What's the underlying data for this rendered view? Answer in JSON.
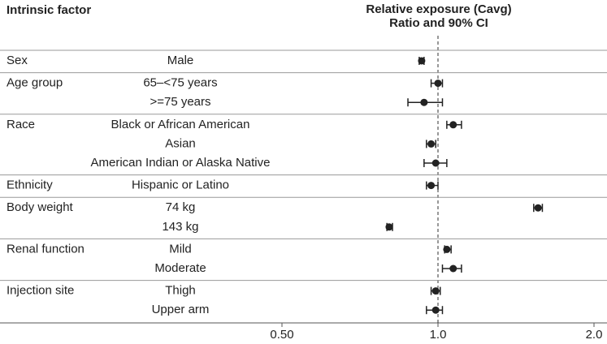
{
  "chart_data": {
    "type": "forest",
    "column_headers": [
      "Intrinsic factor",
      "Relative exposure (Cavg)",
      "Ratio and 90% CI"
    ],
    "groups": [
      {
        "name": "Sex",
        "subgroups": [
          {
            "label": "Male",
            "estimate": 0.93,
            "lower": 0.92,
            "upper": 0.94
          }
        ]
      },
      {
        "name": "Age group",
        "subgroups": [
          {
            "label": "65–<75 years",
            "estimate": 1.0,
            "lower": 0.97,
            "upper": 1.02
          },
          {
            "label": ">=75 years",
            "estimate": 0.94,
            "lower": 0.875,
            "upper": 1.02
          }
        ]
      },
      {
        "name": "Race",
        "subgroups": [
          {
            "label": "Black or African American",
            "estimate": 1.07,
            "lower": 1.04,
            "upper": 1.11
          },
          {
            "label": "Asian",
            "estimate": 0.97,
            "lower": 0.95,
            "upper": 0.99
          },
          {
            "label": "American Indian or Alaska Native",
            "estimate": 0.99,
            "lower": 0.94,
            "upper": 1.04
          }
        ]
      },
      {
        "name": "Ethnicity",
        "subgroups": [
          {
            "label": "Hispanic or Latino",
            "estimate": 0.97,
            "lower": 0.95,
            "upper": 1.0
          }
        ]
      },
      {
        "name": "Body weight",
        "subgroups": [
          {
            "label": "74 kg",
            "estimate": 1.56,
            "lower": 1.53,
            "upper": 1.59
          },
          {
            "label": "143 kg",
            "estimate": 0.805,
            "lower": 0.797,
            "upper": 0.817
          }
        ]
      },
      {
        "name": "Renal function",
        "subgroups": [
          {
            "label": "Mild",
            "estimate": 1.04,
            "lower": 1.03,
            "upper": 1.06
          },
          {
            "label": "Moderate",
            "estimate": 1.07,
            "lower": 1.02,
            "upper": 1.11
          }
        ]
      },
      {
        "name": "Injection site",
        "subgroups": [
          {
            "label": "Thigh",
            "estimate": 0.99,
            "lower": 0.97,
            "upper": 1.01
          },
          {
            "label": "Upper arm",
            "estimate": 0.99,
            "lower": 0.95,
            "upper": 1.02
          }
        ]
      }
    ],
    "xlim": [
      0.5,
      2.0
    ],
    "xticks": [
      {
        "value": 0.5,
        "label": "0.50"
      },
      {
        "value": 1,
        "label": "1.0"
      },
      {
        "value": 2,
        "label": "2.0"
      }
    ],
    "log_scale": true,
    "reference": 1,
    "color": "#222222"
  }
}
